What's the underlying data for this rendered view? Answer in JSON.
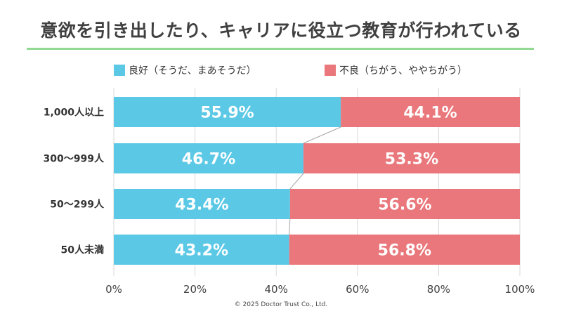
{
  "title": "意欲を引き出したり、キャリアに役立つ教育が行われている",
  "footer": "© 2025 Doctor Trust Co., Ltd.",
  "colors": {
    "good": "#5bc8e6",
    "bad": "#e9777b",
    "rule": "#93d993"
  },
  "chart_data": {
    "type": "bar",
    "orientation": "horizontal",
    "stacked": true,
    "categories": [
      "1,000人以上",
      "300～999人",
      "50～299人",
      "50人未満"
    ],
    "series": [
      {
        "name": "良好（そうだ、まあそうだ）",
        "values": [
          55.9,
          46.7,
          43.4,
          43.2
        ],
        "labels": [
          "55.9%",
          "46.7%",
          "43.4%",
          "43.2%"
        ]
      },
      {
        "name": "不良（ちがう、ややちがう）",
        "values": [
          44.1,
          53.3,
          56.6,
          56.8
        ],
        "labels": [
          "44.1%",
          "53.3%",
          "56.6%",
          "56.8%"
        ]
      }
    ],
    "xticks": [
      "0%",
      "20%",
      "40%",
      "60%",
      "80%",
      "100%"
    ],
    "xlim": [
      0,
      100
    ],
    "grid": true,
    "legend_position": "top",
    "connector_lines": true
  }
}
